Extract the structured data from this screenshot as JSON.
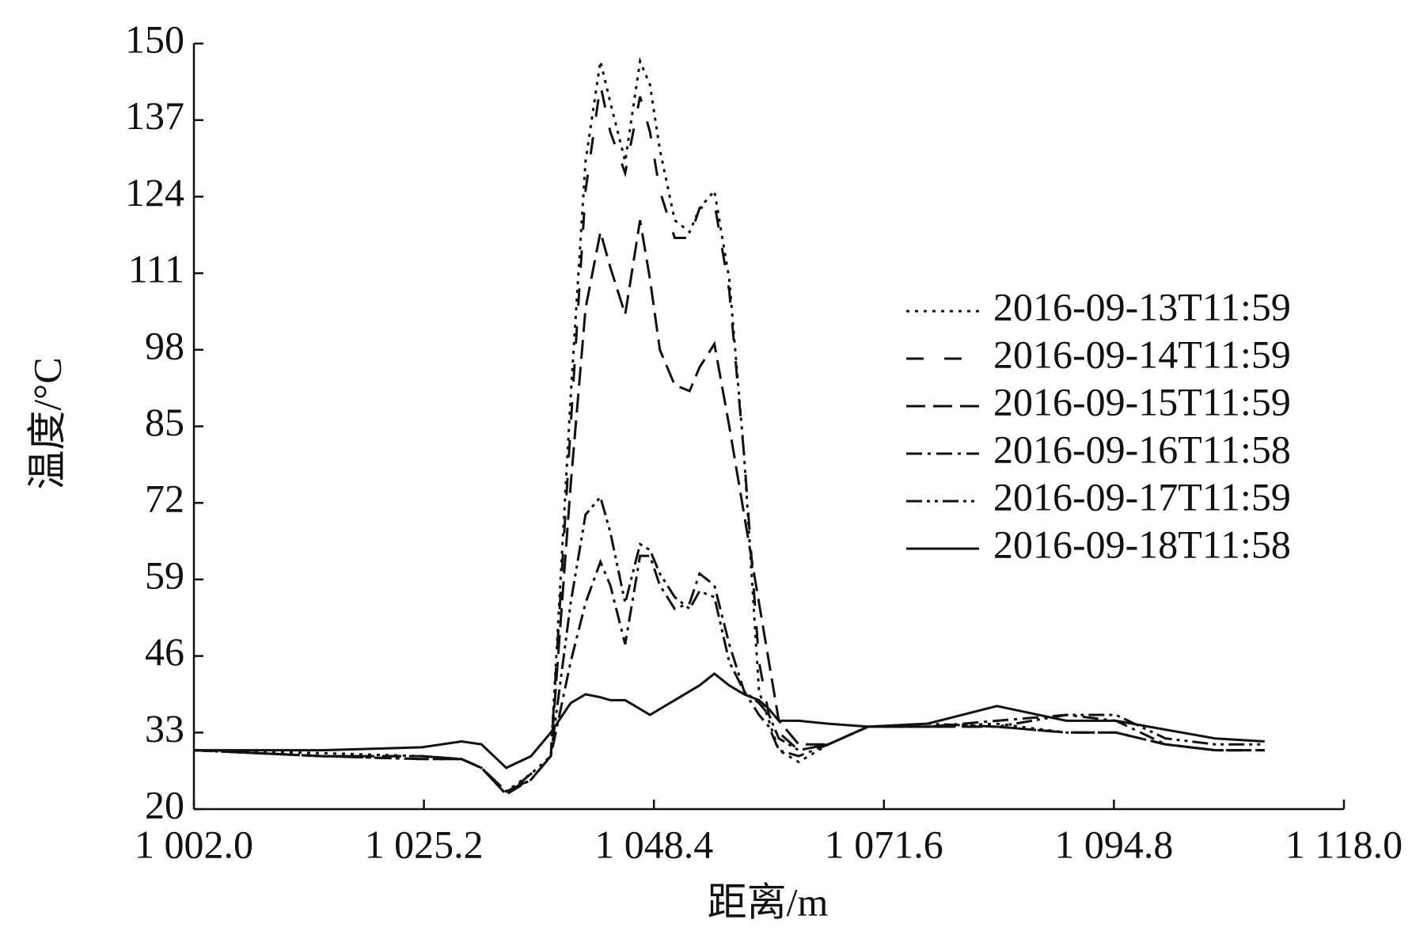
{
  "chart_data": {
    "type": "line",
    "xlabel": "距离/m",
    "ylabel": "温度/°C",
    "x": [
      1002,
      1015,
      1025,
      1029,
      1031,
      1033.5,
      1036,
      1038,
      1040,
      1041.5,
      1043,
      1044,
      1045.5,
      1047,
      1048,
      1049,
      1050.5,
      1052,
      1053,
      1054.5,
      1056,
      1057.5,
      1059,
      1060,
      1061,
      1063,
      1066,
      1070,
      1076,
      1083,
      1090,
      1095,
      1100,
      1105,
      1110
    ],
    "series": [
      {
        "name": "2016-09-13T11:59",
        "color": "#111111",
        "dash": "4,7",
        "values": [
          30,
          29.5,
          29,
          28.5,
          27,
          23,
          26,
          29,
          90,
          130,
          147,
          140,
          130,
          147,
          143,
          132,
          120,
          118,
          122,
          125,
          110,
          80,
          40,
          35,
          30,
          28,
          31,
          34,
          34,
          34.5,
          33,
          33,
          31,
          30,
          30
        ]
      },
      {
        "name": "2016-09-14T11:59",
        "color": "#111111",
        "dash": "22,26",
        "values": [
          30,
          29,
          29,
          28.5,
          27,
          22.5,
          26,
          29,
          85,
          125,
          143,
          135,
          128,
          141,
          135,
          125,
          117,
          117,
          122,
          123,
          108,
          80,
          45,
          36,
          33,
          30,
          31,
          34,
          34,
          34,
          33,
          33,
          31,
          30,
          30
        ]
      },
      {
        "name": "2016-09-15T11:59",
        "color": "#111111",
        "dash": "24,10",
        "values": [
          30,
          29,
          29,
          28.5,
          27,
          23,
          25,
          29,
          75,
          105,
          118,
          112,
          104,
          120,
          110,
          98,
          92,
          91,
          95,
          99,
          85,
          70,
          55,
          45,
          35,
          31,
          31,
          34,
          34,
          34,
          33,
          33,
          31,
          30,
          30
        ]
      },
      {
        "name": "2016-09-16T11:58",
        "color": "#111111",
        "dash": "20,7,4,7",
        "values": [
          30,
          29,
          28.5,
          28.5,
          27,
          23,
          25,
          29,
          45,
          55,
          62,
          58,
          48,
          63,
          63,
          58,
          54,
          55,
          60,
          58,
          48,
          40,
          36,
          34,
          30,
          29,
          31,
          34,
          34,
          35,
          36,
          35,
          31,
          30,
          30
        ]
      },
      {
        "name": "2016-09-17T11:59",
        "color": "#111111",
        "dash": "20,6,4,6,4,6",
        "values": [
          30,
          29,
          28.5,
          28.5,
          27,
          22.5,
          25,
          29,
          55,
          70,
          73,
          67,
          55,
          65,
          64,
          60,
          56,
          54,
          57,
          56,
          45,
          40,
          38,
          36,
          32,
          30,
          31,
          34,
          34.5,
          34,
          36,
          36,
          32,
          31,
          31
        ]
      },
      {
        "name": "2016-09-18T11:58",
        "color": "#111111",
        "dash": "none",
        "values": [
          30,
          30,
          30.5,
          31.5,
          31,
          27,
          29,
          33,
          38,
          39.5,
          39,
          38.5,
          38.5,
          37,
          36,
          37,
          38.5,
          40,
          41,
          43,
          41,
          39.5,
          38.5,
          37,
          35,
          35,
          34.5,
          34,
          34.5,
          37.5,
          35,
          35,
          33.5,
          32,
          31.5
        ]
      }
    ],
    "xlim": [
      1002,
      1118
    ],
    "xticks": [
      {
        "value": 1002,
        "label": "1 002.0"
      },
      {
        "value": 1025.2,
        "label": "1 025.2"
      },
      {
        "value": 1048.4,
        "label": "1 048.4"
      },
      {
        "value": 1071.6,
        "label": "1 071.6"
      },
      {
        "value": 1094.8,
        "label": "1 094.8"
      },
      {
        "value": 1118,
        "label": "1 118.0"
      }
    ],
    "ylim": [
      20,
      150
    ],
    "yticks": [
      20,
      33,
      46,
      59,
      72,
      85,
      98,
      111,
      124,
      137,
      150
    ],
    "legend": "right"
  }
}
